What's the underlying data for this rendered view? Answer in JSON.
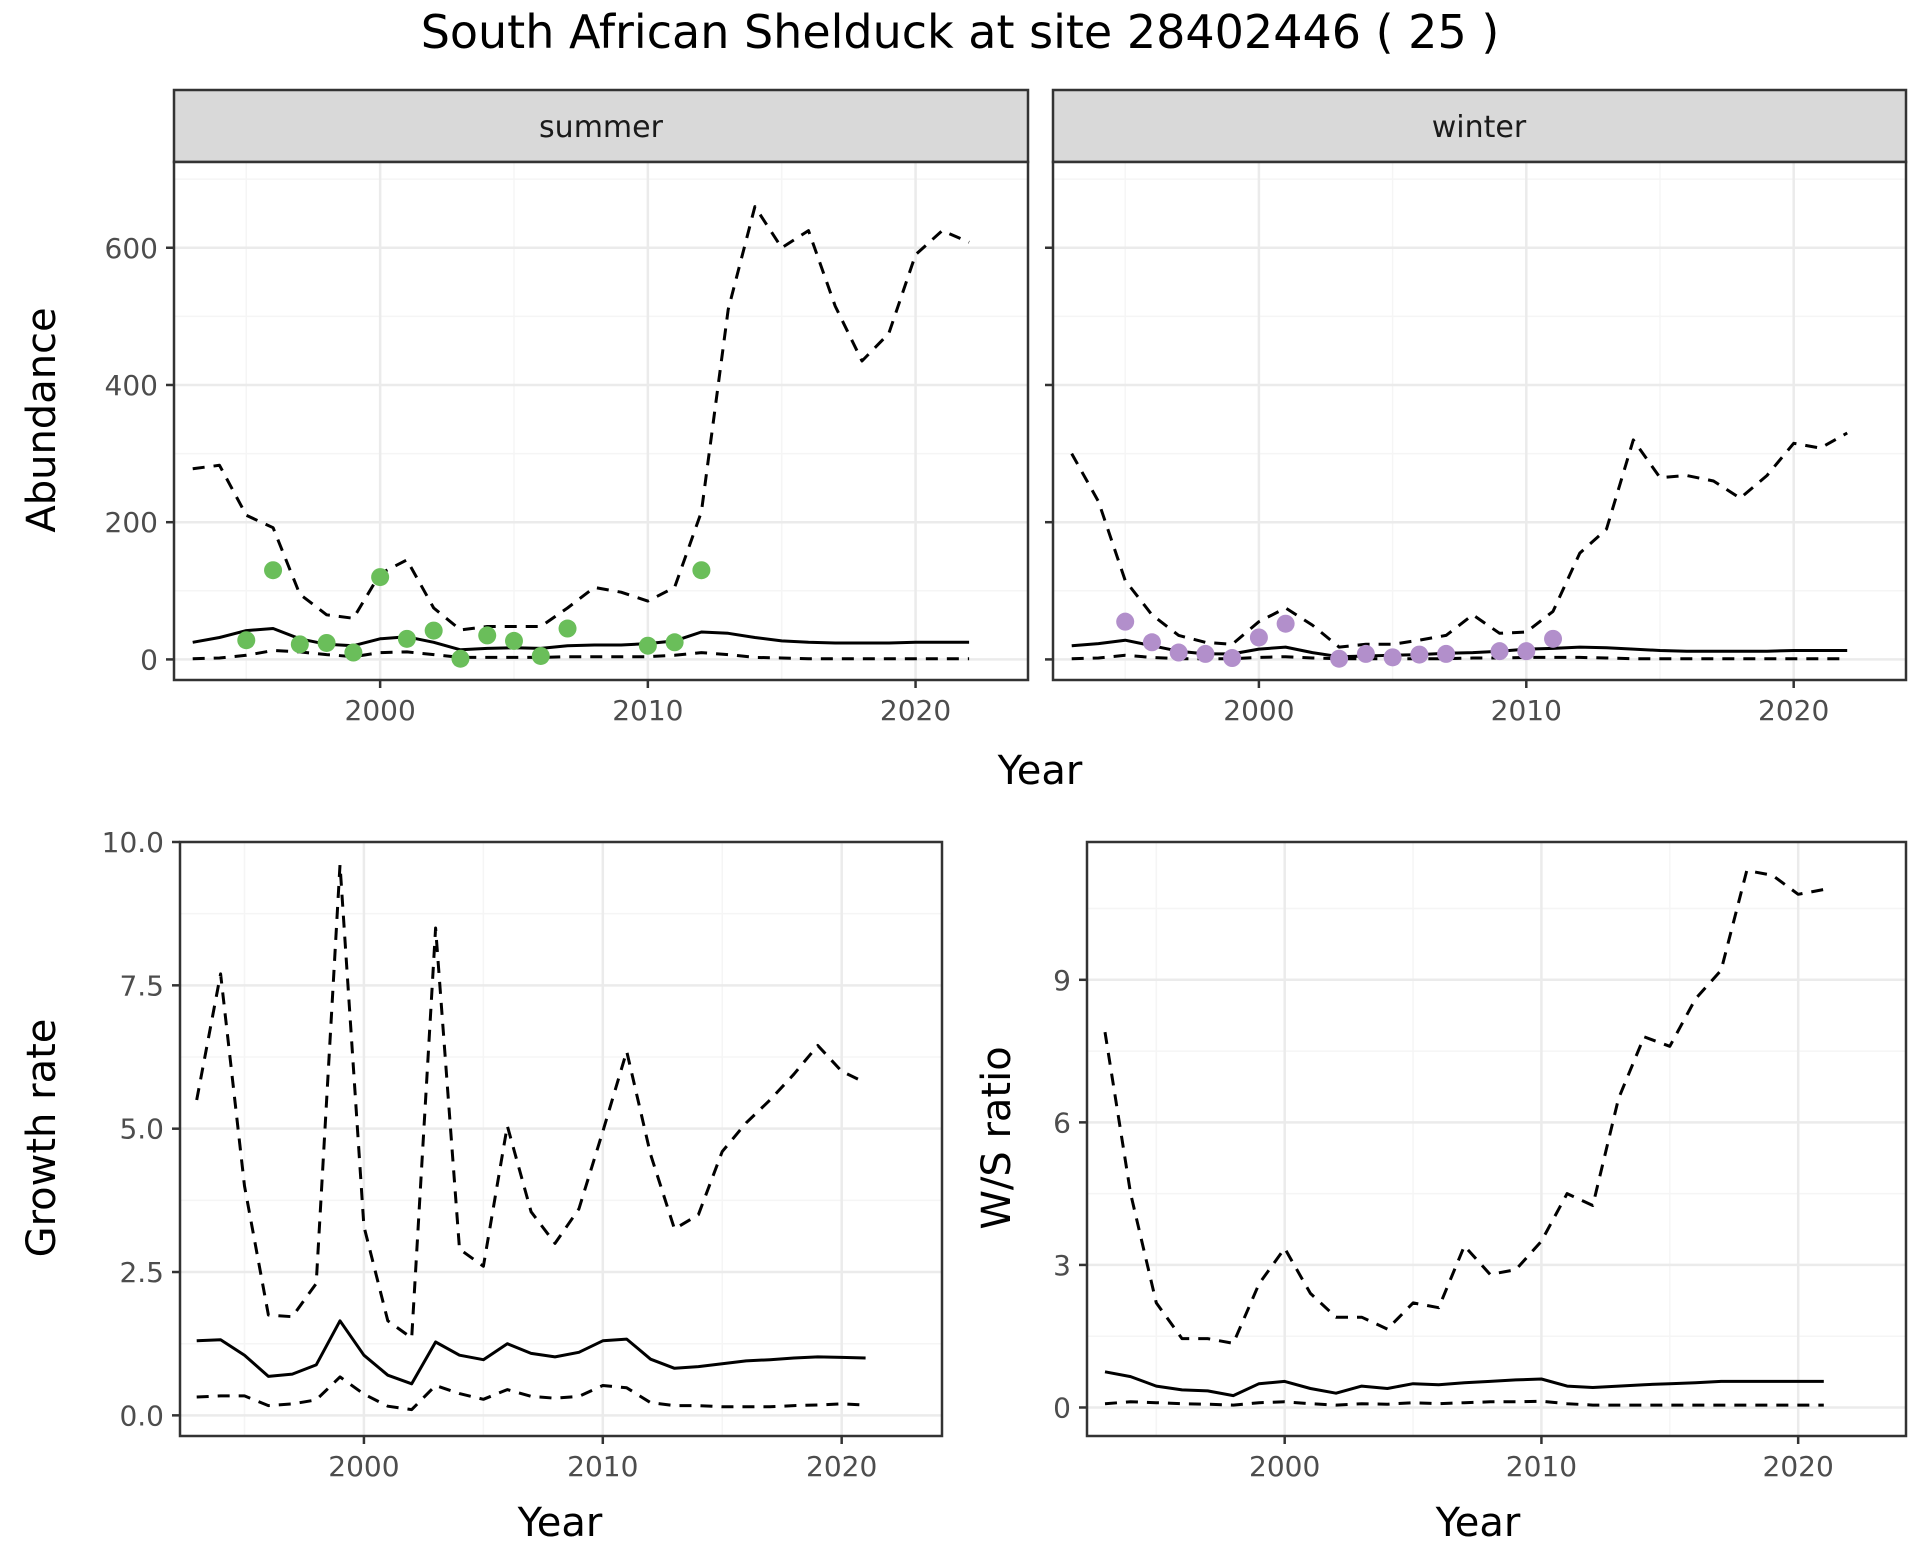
{
  "title": "South African Shelduck at site 28402446 ( 25 )",
  "colors": {
    "summer_points": "#6ABE5A",
    "winter_points": "#B28FCB",
    "lines": "#000000",
    "strip_bg": "#D9D9D9",
    "grid_major": "#EBEBEB",
    "grid_minor": "#F5F5F5"
  },
  "chart_data": [
    {
      "type": "line",
      "facet": "summer",
      "ylabel": "Abundance",
      "xlabel": "Year",
      "xlim": [
        1992.3,
        2024.2
      ],
      "ylim": [
        -30,
        725
      ],
      "x_ticks": [
        2000,
        2010,
        2020
      ],
      "y_ticks": [
        0,
        200,
        400,
        600
      ],
      "show_y_tick_labels": true,
      "series": [
        {
          "style": "solid",
          "x": [
            1993,
            1994,
            1995,
            1996,
            1997,
            1998,
            1999,
            2000,
            2001,
            2002,
            2003,
            2004,
            2005,
            2006,
            2007,
            2008,
            2009,
            2010,
            2011,
            2012,
            2013,
            2014,
            2015,
            2016,
            2017,
            2018,
            2019,
            2020,
            2021,
            2022
          ],
          "y": [
            25,
            32,
            42,
            45,
            30,
            22,
            20,
            30,
            33,
            25,
            14,
            16,
            17,
            16,
            20,
            21,
            21,
            23,
            27,
            40,
            38,
            32,
            27,
            25,
            24,
            24,
            24,
            25,
            25,
            25
          ]
        },
        {
          "style": "dashed",
          "x": [
            1993,
            1994,
            1995,
            1996,
            1997,
            1998,
            1999,
            2000,
            2001,
            2002,
            2003,
            2004,
            2005,
            2006,
            2007,
            2008,
            2009,
            2010,
            2011,
            2012,
            2013,
            2014,
            2015,
            2016,
            2017,
            2018,
            2019,
            2020,
            2021,
            2022
          ],
          "y": [
            278,
            283,
            210,
            192,
            95,
            65,
            60,
            125,
            145,
            75,
            43,
            48,
            48,
            48,
            75,
            105,
            98,
            85,
            105,
            215,
            510,
            660,
            600,
            625,
            515,
            435,
            475,
            590,
            625,
            608
          ]
        },
        {
          "style": "dashed",
          "x": [
            1993,
            1994,
            1995,
            1996,
            1997,
            1998,
            1999,
            2000,
            2001,
            2002,
            2003,
            2004,
            2005,
            2006,
            2007,
            2008,
            2009,
            2010,
            2011,
            2012,
            2013,
            2014,
            2015,
            2016,
            2017,
            2018,
            2019,
            2020,
            2021,
            2022
          ],
          "y": [
            1,
            2,
            6,
            13,
            11,
            7,
            4,
            10,
            11,
            7,
            3,
            3,
            3,
            3,
            4,
            4,
            4,
            4,
            6,
            10,
            7,
            3,
            2,
            1,
            1,
            1,
            1,
            1,
            1,
            1
          ]
        },
        {
          "style": "points",
          "x": [
            1995,
            1996,
            1997,
            1998,
            1999,
            2000,
            2001,
            2002,
            2003,
            2004,
            2005,
            2006,
            2007,
            2010,
            2011,
            2012
          ],
          "y": [
            28,
            130,
            22,
            24,
            10,
            120,
            30,
            42,
            1,
            35,
            27,
            5,
            45,
            20,
            25,
            130
          ]
        }
      ]
    },
    {
      "type": "line",
      "facet": "winter",
      "ylabel": "",
      "xlabel": "Year",
      "xlim": [
        1992.3,
        2024.2
      ],
      "ylim": [
        -30,
        725
      ],
      "x_ticks": [
        2000,
        2010,
        2020
      ],
      "y_ticks": [
        0,
        200,
        400,
        600
      ],
      "show_y_tick_labels": false,
      "series": [
        {
          "style": "solid",
          "x": [
            1993,
            1994,
            1995,
            1996,
            1997,
            1998,
            1999,
            2000,
            2001,
            2002,
            2003,
            2004,
            2005,
            2006,
            2007,
            2008,
            2009,
            2010,
            2011,
            2012,
            2013,
            2014,
            2015,
            2016,
            2017,
            2018,
            2019,
            2020,
            2021,
            2022
          ],
          "y": [
            20,
            23,
            28,
            20,
            12,
            8,
            8,
            15,
            18,
            10,
            4,
            5,
            6,
            7,
            9,
            10,
            12,
            15,
            16,
            18,
            17,
            15,
            13,
            12,
            12,
            12,
            12,
            13,
            13,
            13
          ]
        },
        {
          "style": "dashed",
          "x": [
            1993,
            1994,
            1995,
            1996,
            1997,
            1998,
            1999,
            2000,
            2001,
            2002,
            2003,
            2004,
            2005,
            2006,
            2007,
            2008,
            2009,
            2010,
            2011,
            2012,
            2013,
            2014,
            2015,
            2016,
            2017,
            2018,
            2019,
            2020,
            2021,
            2022
          ],
          "y": [
            300,
            230,
            115,
            65,
            35,
            25,
            22,
            55,
            75,
            50,
            18,
            22,
            22,
            28,
            35,
            65,
            38,
            40,
            70,
            155,
            190,
            320,
            265,
            268,
            260,
            235,
            268,
            315,
            308,
            330
          ]
        },
        {
          "style": "dashed",
          "x": [
            1993,
            1994,
            1995,
            1996,
            1997,
            1998,
            1999,
            2000,
            2001,
            2002,
            2003,
            2004,
            2005,
            2006,
            2007,
            2008,
            2009,
            2010,
            2011,
            2012,
            2013,
            2014,
            2015,
            2016,
            2017,
            2018,
            2019,
            2020,
            2021,
            2022
          ],
          "y": [
            1,
            2,
            6,
            3,
            1,
            1,
            1,
            3,
            4,
            2,
            1,
            1,
            1,
            1,
            1,
            2,
            2,
            3,
            3,
            3,
            2,
            1,
            1,
            1,
            1,
            1,
            1,
            1,
            1,
            1
          ]
        },
        {
          "style": "points",
          "x": [
            1995,
            1996,
            1997,
            1998,
            1999,
            2000,
            2001,
            2003,
            2004,
            2005,
            2006,
            2007,
            2009,
            2010,
            2011
          ],
          "y": [
            55,
            25,
            10,
            8,
            2,
            32,
            52,
            1,
            8,
            3,
            7,
            8,
            12,
            12,
            30
          ]
        }
      ]
    },
    {
      "type": "line",
      "ylabel": "Growth rate",
      "xlabel": "Year",
      "xlim": [
        1992.3,
        2024.2
      ],
      "ylim": [
        -0.36,
        10.0
      ],
      "x_ticks": [
        2000,
        2010,
        2020
      ],
      "y_ticks": [
        0.0,
        2.5,
        5.0,
        7.5,
        10.0
      ],
      "y_tick_labels": [
        "0.0",
        "2.5",
        "5.0",
        "7.5",
        "10.0"
      ],
      "show_y_tick_labels": true,
      "series": [
        {
          "style": "solid",
          "x": [
            1993,
            1994,
            1995,
            1996,
            1997,
            1998,
            1999,
            2000,
            2001,
            2002,
            2003,
            2004,
            2005,
            2006,
            2007,
            2008,
            2009,
            2010,
            2011,
            2012,
            2013,
            2014,
            2015,
            2016,
            2017,
            2018,
            2019,
            2020,
            2021
          ],
          "y": [
            1.3,
            1.32,
            1.05,
            0.68,
            0.72,
            0.88,
            1.65,
            1.05,
            0.7,
            0.55,
            1.28,
            1.05,
            0.97,
            1.25,
            1.08,
            1.02,
            1.1,
            1.3,
            1.33,
            0.98,
            0.82,
            0.85,
            0.9,
            0.95,
            0.97,
            1.0,
            1.02,
            1.01,
            1.0
          ]
        },
        {
          "style": "dashed",
          "x": [
            1993,
            1994,
            1995,
            1996,
            1997,
            1998,
            1999,
            2000,
            2001,
            2002,
            2003,
            2004,
            2005,
            2006,
            2007,
            2008,
            2009,
            2010,
            2011,
            2012,
            2013,
            2014,
            2015,
            2016,
            2017,
            2018,
            2019,
            2020,
            2021
          ],
          "y": [
            5.5,
            7.7,
            4.0,
            1.75,
            1.72,
            2.3,
            9.6,
            3.3,
            1.65,
            1.35,
            8.5,
            2.9,
            2.6,
            5.05,
            3.55,
            3.0,
            3.6,
            4.95,
            6.35,
            4.55,
            3.25,
            3.5,
            4.6,
            5.1,
            5.5,
            5.95,
            6.45,
            6.0,
            5.8
          ]
        },
        {
          "style": "dashed",
          "x": [
            1993,
            1994,
            1995,
            1996,
            1997,
            1998,
            1999,
            2000,
            2001,
            2002,
            2003,
            2004,
            2005,
            2006,
            2007,
            2008,
            2009,
            2010,
            2011,
            2012,
            2013,
            2014,
            2015,
            2016,
            2017,
            2018,
            2019,
            2020,
            2021
          ],
          "y": [
            0.32,
            0.34,
            0.34,
            0.17,
            0.2,
            0.27,
            0.67,
            0.37,
            0.16,
            0.1,
            0.52,
            0.38,
            0.28,
            0.45,
            0.33,
            0.3,
            0.33,
            0.52,
            0.48,
            0.22,
            0.17,
            0.17,
            0.15,
            0.15,
            0.15,
            0.17,
            0.18,
            0.2,
            0.18
          ]
        }
      ]
    },
    {
      "type": "line",
      "ylabel": "W/S ratio",
      "xlabel": "Year",
      "xlim": [
        1992.3,
        2024.2
      ],
      "ylim": [
        -0.6,
        11.9
      ],
      "x_ticks": [
        2000,
        2010,
        2020
      ],
      "y_ticks": [
        0,
        3,
        6,
        9
      ],
      "show_y_tick_labels": true,
      "series": [
        {
          "style": "solid",
          "x": [
            1993,
            1994,
            1995,
            1996,
            1997,
            1998,
            1999,
            2000,
            2001,
            2002,
            2003,
            2004,
            2005,
            2006,
            2007,
            2008,
            2009,
            2010,
            2011,
            2012,
            2013,
            2014,
            2015,
            2016,
            2017,
            2018,
            2019,
            2020,
            2021
          ],
          "y": [
            0.75,
            0.65,
            0.45,
            0.37,
            0.35,
            0.25,
            0.5,
            0.55,
            0.4,
            0.3,
            0.45,
            0.4,
            0.5,
            0.48,
            0.52,
            0.55,
            0.58,
            0.6,
            0.45,
            0.42,
            0.45,
            0.48,
            0.5,
            0.52,
            0.55,
            0.55,
            0.55,
            0.55,
            0.55
          ]
        },
        {
          "style": "dashed",
          "x": [
            1993,
            1994,
            1995,
            1996,
            1997,
            1998,
            1999,
            2000,
            2001,
            2002,
            2003,
            2004,
            2005,
            2006,
            2007,
            2008,
            2009,
            2010,
            2011,
            2012,
            2013,
            2014,
            2015,
            2016,
            2017,
            2018,
            2019,
            2020,
            2021
          ],
          "y": [
            7.9,
            4.5,
            2.2,
            1.45,
            1.45,
            1.35,
            2.6,
            3.35,
            2.4,
            1.9,
            1.9,
            1.65,
            2.2,
            2.1,
            3.4,
            2.8,
            2.9,
            3.5,
            4.5,
            4.25,
            6.5,
            7.8,
            7.6,
            8.6,
            9.2,
            11.3,
            11.2,
            10.8,
            10.9
          ]
        },
        {
          "style": "dashed",
          "x": [
            1993,
            1994,
            1995,
            1996,
            1997,
            1998,
            1999,
            2000,
            2001,
            2002,
            2003,
            2004,
            2005,
            2006,
            2007,
            2008,
            2009,
            2010,
            2011,
            2012,
            2013,
            2014,
            2015,
            2016,
            2017,
            2018,
            2019,
            2020,
            2021
          ],
          "y": [
            0.08,
            0.12,
            0.1,
            0.08,
            0.07,
            0.05,
            0.1,
            0.12,
            0.08,
            0.05,
            0.08,
            0.07,
            0.1,
            0.08,
            0.1,
            0.12,
            0.12,
            0.13,
            0.08,
            0.05,
            0.05,
            0.05,
            0.05,
            0.05,
            0.05,
            0.05,
            0.05,
            0.05,
            0.05
          ]
        }
      ]
    }
  ]
}
